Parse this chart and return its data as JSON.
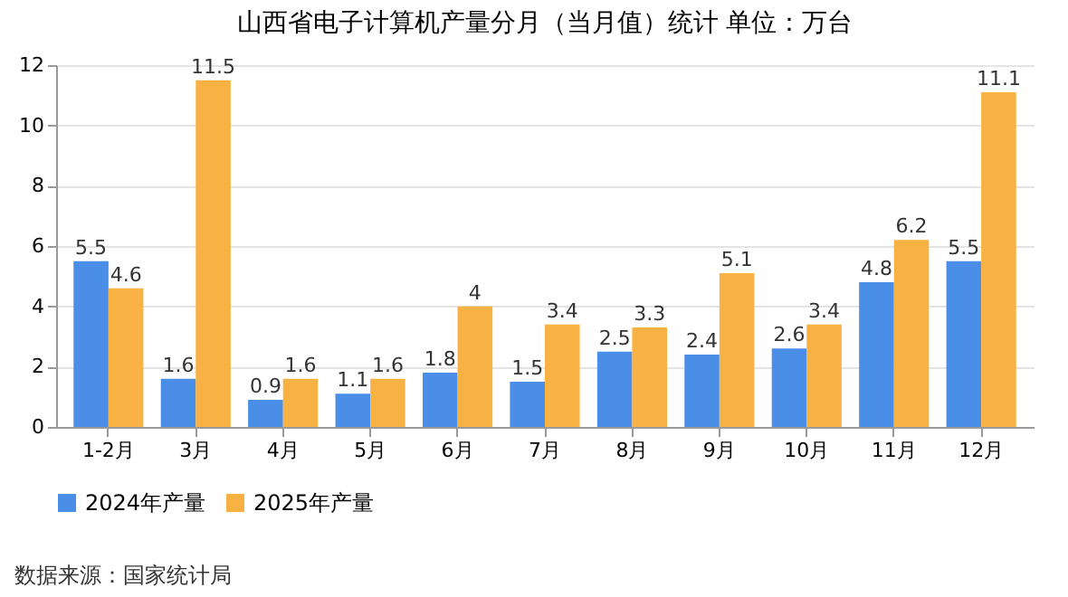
{
  "chart_data": {
    "type": "bar",
    "title": "山西省电子计算机产量分月（当月值）统计  单位：万台",
    "categories": [
      "1-2月",
      "3月",
      "4月",
      "5月",
      "6月",
      "7月",
      "8月",
      "9月",
      "10月",
      "11月",
      "12月"
    ],
    "series": [
      {
        "name": "2024年产量",
        "color": "#4a8ee8",
        "values": [
          5.5,
          1.6,
          0.9,
          1.1,
          1.8,
          1.5,
          2.5,
          2.4,
          2.6,
          4.8,
          5.5
        ]
      },
      {
        "name": "2025年产量",
        "color": "#f8b143",
        "values": [
          4.6,
          11.5,
          1.6,
          1.6,
          4,
          3.4,
          3.3,
          5.1,
          3.4,
          6.2,
          11.1
        ]
      }
    ],
    "ylim": [
      0,
      12
    ],
    "yticks": [
      0,
      2,
      4,
      6,
      8,
      10,
      12
    ],
    "grid": "y",
    "legend": "bottom",
    "data_labels": true,
    "annotations": [
      "数据来源：国家统计局"
    ]
  }
}
